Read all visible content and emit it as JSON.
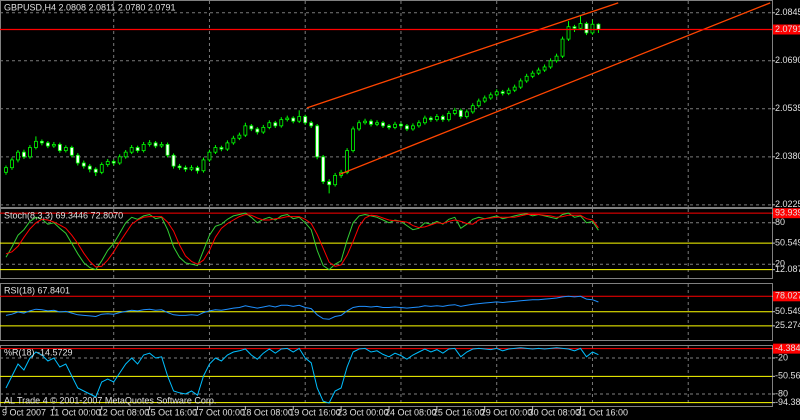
{
  "chart_data": [
    {
      "type": "candlestick",
      "title": "GBPUSD,H4 2.0808 2.0811 2.0780 2.0791",
      "up_color": "#000000",
      "down_color": "#ffffff",
      "edge_color": "#00ff00",
      "xlim": [
        -1,
        128
      ],
      "ylim": [
        2.0218,
        2.0883
      ],
      "yticks": [
        2.0845,
        {
          "value": 2.069,
          "label": "2.0690"
        },
        2.0535,
        {
          "value": 2.038,
          "label": "2.0380"
        },
        2.0225
      ],
      "grid": true,
      "xgrid": [
        18,
        34,
        50,
        66,
        82,
        98,
        114
      ],
      "price_line": {
        "value": 2.0791,
        "color": "#ff0000"
      },
      "trendlines": [
        {
          "x": [
            50.3,
            102.3
          ],
          "y": [
            2.0538,
            2.0877
          ],
          "color": "#ff4500"
        },
        {
          "x": [
            55.7,
            127.7
          ],
          "y": [
            2.0323,
            2.0877
          ],
          "color": "#ff4500"
        }
      ],
      "candles": [
        [
          2.033,
          2.0352,
          2.0322,
          2.0345
        ],
        [
          2.0345,
          2.0378,
          2.0338,
          2.037
        ],
        [
          2.037,
          2.0402,
          2.0362,
          2.0395
        ],
        [
          2.0395,
          2.0403,
          2.0373,
          2.038
        ],
        [
          2.038,
          2.0418,
          2.0374,
          2.041
        ],
        [
          2.041,
          2.0446,
          2.0404,
          2.043
        ],
        [
          2.043,
          2.0436,
          2.0417,
          2.0425
        ],
        [
          2.0425,
          2.0431,
          2.0408,
          2.0415
        ],
        [
          2.0415,
          2.0428,
          2.0409,
          2.042
        ],
        [
          2.042,
          2.0426,
          2.0393,
          2.04
        ],
        [
          2.04,
          2.0417,
          2.0394,
          2.041
        ],
        [
          2.041,
          2.0416,
          2.0378,
          2.0385
        ],
        [
          2.0385,
          2.0392,
          2.0352,
          2.036
        ],
        [
          2.036,
          2.0368,
          2.0342,
          2.035
        ],
        [
          2.035,
          2.0357,
          2.033,
          2.034
        ],
        [
          2.034,
          2.0346,
          2.0318,
          2.033
        ],
        [
          2.033,
          2.0362,
          2.0324,
          2.0355
        ],
        [
          2.0355,
          2.0373,
          2.0348,
          2.0365
        ],
        [
          2.0365,
          2.0371,
          2.0352,
          2.036
        ],
        [
          2.036,
          2.0388,
          2.0354,
          2.038
        ],
        [
          2.038,
          2.0402,
          2.0374,
          2.0395
        ],
        [
          2.0395,
          2.0418,
          2.0389,
          2.041
        ],
        [
          2.041,
          2.0416,
          2.0393,
          2.04
        ],
        [
          2.04,
          2.0428,
          2.0394,
          2.042
        ],
        [
          2.042,
          2.0434,
          2.0413,
          2.0425
        ],
        [
          2.0425,
          2.0431,
          2.0408,
          2.0415
        ],
        [
          2.0415,
          2.0428,
          2.0409,
          2.042
        ],
        [
          2.042,
          2.0426,
          2.0378,
          2.0385
        ],
        [
          2.0385,
          2.0391,
          2.0342,
          2.035
        ],
        [
          2.035,
          2.0357,
          2.0338,
          2.0345
        ],
        [
          2.0345,
          2.0352,
          2.0332,
          2.034
        ],
        [
          2.034,
          2.0353,
          2.0334,
          2.0345
        ],
        [
          2.0345,
          2.0351,
          2.0326,
          2.0335
        ],
        [
          2.0335,
          2.0378,
          2.0329,
          2.037
        ],
        [
          2.037,
          2.0403,
          2.0364,
          2.0395
        ],
        [
          2.0395,
          2.0418,
          2.0389,
          2.041
        ],
        [
          2.041,
          2.0416,
          2.0398,
          2.0405
        ],
        [
          2.0405,
          2.0433,
          2.0399,
          2.0425
        ],
        [
          2.0425,
          2.0448,
          2.0419,
          2.044
        ],
        [
          2.044,
          2.0458,
          2.0434,
          2.045
        ],
        [
          2.045,
          2.049,
          2.0444,
          2.048
        ],
        [
          2.048,
          2.0486,
          2.0463,
          2.047
        ],
        [
          2.047,
          2.0476,
          2.0452,
          2.046
        ],
        [
          2.046,
          2.0483,
          2.0454,
          2.0475
        ],
        [
          2.0475,
          2.0498,
          2.0469,
          2.049
        ],
        [
          2.049,
          2.0496,
          2.0473,
          2.048
        ],
        [
          2.048,
          2.0508,
          2.0474,
          2.05
        ],
        [
          2.05,
          2.0513,
          2.0494,
          2.0505
        ],
        [
          2.0505,
          2.0511,
          2.0488,
          2.0495
        ],
        [
          2.0495,
          2.053,
          2.0489,
          2.051
        ],
        [
          2.051,
          2.0516,
          2.0483,
          2.049
        ],
        [
          2.049,
          2.0496,
          2.0473,
          2.048
        ],
        [
          2.048,
          2.0486,
          2.0372,
          2.038
        ],
        [
          2.038,
          2.0386,
          2.0292,
          2.03
        ],
        [
          2.03,
          2.0308,
          2.0262,
          2.029
        ],
        [
          2.029,
          2.0328,
          2.0284,
          2.032
        ],
        [
          2.032,
          2.0338,
          2.0312,
          2.033
        ],
        [
          2.033,
          2.0408,
          2.0324,
          2.04
        ],
        [
          2.04,
          2.0478,
          2.0394,
          2.047
        ],
        [
          2.047,
          2.0498,
          2.0464,
          2.049
        ],
        [
          2.049,
          2.0503,
          2.0484,
          2.0495
        ],
        [
          2.0495,
          2.0501,
          2.0478,
          2.0485
        ],
        [
          2.0485,
          2.0498,
          2.0479,
          2.049
        ],
        [
          2.049,
          2.0496,
          2.0473,
          2.048
        ],
        [
          2.048,
          2.0486,
          2.0468,
          2.0475
        ],
        [
          2.0475,
          2.0493,
          2.0469,
          2.0485
        ],
        [
          2.0485,
          2.0491,
          2.0473,
          2.048
        ],
        [
          2.048,
          2.0486,
          2.0463,
          2.047
        ],
        [
          2.047,
          2.0488,
          2.0464,
          2.048
        ],
        [
          2.048,
          2.0498,
          2.0474,
          2.049
        ],
        [
          2.049,
          2.0513,
          2.0484,
          2.0505
        ],
        [
          2.0505,
          2.0511,
          2.0493,
          2.05
        ],
        [
          2.05,
          2.0518,
          2.0494,
          2.051
        ],
        [
          2.051,
          2.0516,
          2.0493,
          2.05
        ],
        [
          2.05,
          2.0528,
          2.0494,
          2.052
        ],
        [
          2.052,
          2.0538,
          2.0514,
          2.053
        ],
        [
          2.053,
          2.0536,
          2.0503,
          2.051
        ],
        [
          2.051,
          2.0533,
          2.0504,
          2.0525
        ],
        [
          2.0525,
          2.0553,
          2.0519,
          2.0545
        ],
        [
          2.0545,
          2.0568,
          2.0539,
          2.056
        ],
        [
          2.056,
          2.0578,
          2.0554,
          2.057
        ],
        [
          2.057,
          2.0588,
          2.0564,
          2.058
        ],
        [
          2.058,
          2.0598,
          2.0574,
          2.059
        ],
        [
          2.059,
          2.0596,
          2.0578,
          2.0585
        ],
        [
          2.0585,
          2.0603,
          2.0579,
          2.0595
        ],
        [
          2.0595,
          2.0613,
          2.0589,
          2.0605
        ],
        [
          2.0605,
          2.0633,
          2.0599,
          2.0625
        ],
        [
          2.0625,
          2.0648,
          2.0619,
          2.064
        ],
        [
          2.064,
          2.0658,
          2.0634,
          2.065
        ],
        [
          2.065,
          2.0668,
          2.0644,
          2.066
        ],
        [
          2.066,
          2.0678,
          2.0654,
          2.067
        ],
        [
          2.067,
          2.0698,
          2.0664,
          2.069
        ],
        [
          2.069,
          2.0713,
          2.0684,
          2.0705
        ],
        [
          2.0705,
          2.0768,
          2.0699,
          2.076
        ],
        [
          2.076,
          2.0818,
          2.0754,
          2.08
        ],
        [
          2.08,
          2.0806,
          2.0783,
          2.0795
        ],
        [
          2.0795,
          2.0838,
          2.0789,
          2.081
        ],
        [
          2.081,
          2.0816,
          2.0773,
          2.078
        ],
        [
          2.078,
          2.0823,
          2.0774,
          2.0808
        ],
        [
          2.0808,
          2.0811,
          2.078,
          2.0791
        ]
      ]
    },
    {
      "type": "line",
      "title": "Stoch(8,3,3) 69.3446 72.8070",
      "xlim": [
        -1,
        128
      ],
      "ylim": [
        0,
        100
      ],
      "yticks": [
        93.9394,
        80,
        50.5495,
        20,
        12.0879
      ],
      "level_colors": [
        "#ff0000",
        "#808080",
        "#ffff00",
        "#808080",
        "#ffff00"
      ],
      "series": [
        {
          "color": "#32cd32",
          "values": [
            30,
            45,
            62,
            70,
            82,
            88,
            85,
            78,
            80,
            72,
            65,
            50,
            35,
            22,
            15,
            12,
            25,
            40,
            50,
            65,
            80,
            88,
            85,
            90,
            92,
            86,
            88,
            70,
            45,
            30,
            22,
            20,
            18,
            40,
            62,
            75,
            78,
            85,
            90,
            92,
            94,
            88,
            80,
            85,
            88,
            84,
            90,
            92,
            86,
            88,
            80,
            70,
            40,
            18,
            12,
            20,
            25,
            55,
            80,
            90,
            92,
            90,
            88,
            84,
            80,
            84,
            82,
            76,
            70,
            72,
            80,
            78,
            82,
            78,
            85,
            88,
            72,
            78,
            85,
            88,
            86,
            88,
            90,
            86,
            88,
            90,
            92,
            93,
            90,
            92,
            90,
            88,
            86,
            92,
            94,
            88,
            90,
            80,
            82,
            69.3446
          ]
        },
        {
          "color": "#ff0000",
          "values": [
            35,
            38,
            46,
            59,
            71,
            80,
            85,
            84,
            81,
            77,
            72,
            62,
            50,
            36,
            24,
            16,
            17,
            26,
            38,
            52,
            65,
            78,
            84,
            88,
            89,
            89,
            89,
            81,
            68,
            48,
            32,
            24,
            20,
            26,
            40,
            59,
            72,
            79,
            84,
            89,
            92,
            91,
            87,
            84,
            84,
            86,
            87,
            89,
            89,
            89,
            85,
            79,
            63,
            43,
            23,
            17,
            19,
            33,
            53,
            75,
            87,
            91,
            90,
            87,
            84,
            83,
            82,
            81,
            76,
            73,
            74,
            77,
            80,
            79,
            82,
            84,
            82,
            79,
            78,
            84,
            86,
            87,
            88,
            88,
            88,
            88,
            90,
            92,
            92,
            92,
            91,
            90,
            88,
            89,
            91,
            91,
            91,
            86,
            84,
            72.807
          ]
        }
      ]
    },
    {
      "type": "line",
      "title": "RSI(18) 67.8401",
      "xlim": [
        -1,
        128
      ],
      "ylim": [
        0,
        100
      ],
      "yticks": [
        {
          "value": 78.027,
          "label": "78.0270"
        },
        50.5495,
        25.2747
      ],
      "level_colors": [
        "#ff0000",
        "#ffff00",
        "#ffff00"
      ],
      "series": [
        {
          "color": "#1e90ff",
          "values": [
            44,
            46,
            50,
            48,
            52,
            55,
            54,
            52,
            53,
            50,
            51,
            48,
            45,
            44,
            43,
            42,
            46,
            47,
            46,
            49,
            51,
            53,
            52,
            54,
            55,
            53,
            54,
            49,
            45,
            44,
            44,
            45,
            44,
            49,
            52,
            54,
            53,
            55,
            57,
            58,
            61,
            59,
            57,
            59,
            61,
            59,
            62,
            62,
            60,
            62,
            58,
            56,
            45,
            38,
            37,
            42,
            44,
            52,
            58,
            60,
            60,
            59,
            60,
            58,
            58,
            59,
            58,
            57,
            58,
            59,
            61,
            60,
            61,
            60,
            62,
            63,
            60,
            62,
            64,
            65,
            66,
            67,
            68,
            67,
            68,
            69,
            70,
            71,
            72,
            72,
            73,
            74,
            75,
            77,
            78,
            77,
            78,
            73,
            72,
            67.8401
          ]
        }
      ]
    },
    {
      "type": "line",
      "title": "%R(18) -14.5729",
      "annotation": "AL Trade 4 © 2001-2007 MetaQuotes Software Corp.",
      "xlim": [
        -1,
        128
      ],
      "ylim": [
        -100,
        0
      ],
      "yticks": [
        -4.3844,
        -20,
        -50.5618,
        -80,
        {
          "value": -94.382,
          "label": "-94.3820"
        }
      ],
      "level_colors": [
        "#ff0000",
        "#808080",
        "#ffff00",
        "#808080",
        "#ffff00"
      ],
      "xticks": [
        {
          "value": 0,
          "label": "9 Oct 2007"
        },
        {
          "value": 8,
          "label": "11 Oct 00:00"
        },
        {
          "value": 16,
          "label": "12 Oct 08:00"
        },
        {
          "value": 24,
          "label": "15 Oct 16:00"
        },
        {
          "value": 32,
          "label": "17 Oct 00:00"
        },
        {
          "value": 40,
          "label": "18 Oct 08:00"
        },
        {
          "value": 48,
          "label": "19 Oct 16:00"
        },
        {
          "value": 56,
          "label": "23 Oct 00:00"
        },
        {
          "value": 64,
          "label": "24 Oct 08:00"
        },
        {
          "value": 72,
          "label": "25 Oct 16:00"
        },
        {
          "value": 80,
          "label": "29 Oct 00:00"
        },
        {
          "value": 88,
          "label": "30 Oct 08:00"
        },
        {
          "value": 96,
          "label": "31 Oct 16:00"
        }
      ],
      "series": [
        {
          "color": "#00bfff",
          "values": [
            -70,
            -50,
            -30,
            -40,
            -20,
            -10,
            -15,
            -25,
            -20,
            -35,
            -30,
            -50,
            -70,
            -75,
            -80,
            -85,
            -60,
            -55,
            -60,
            -45,
            -30,
            -20,
            -30,
            -15,
            -12,
            -20,
            -18,
            -50,
            -75,
            -78,
            -80,
            -75,
            -82,
            -50,
            -30,
            -20,
            -25,
            -15,
            -10,
            -8,
            -5,
            -15,
            -22,
            -12,
            -5,
            -12,
            -5,
            -4,
            -10,
            -4,
            -20,
            -28,
            -70,
            -92,
            -95,
            -75,
            -70,
            -35,
            -10,
            -5,
            -4,
            -10,
            -8,
            -14,
            -18,
            -12,
            -16,
            -22,
            -15,
            -10,
            -5,
            -10,
            -6,
            -12,
            -5,
            -4,
            -18,
            -10,
            -5,
            -4,
            -5,
            -6,
            -4,
            -8,
            -5,
            -4,
            -3,
            -4,
            -5,
            -4,
            -5,
            -4,
            -3,
            -4,
            -5,
            -8,
            -4,
            -18,
            -10,
            -14.5729
          ]
        }
      ]
    }
  ]
}
